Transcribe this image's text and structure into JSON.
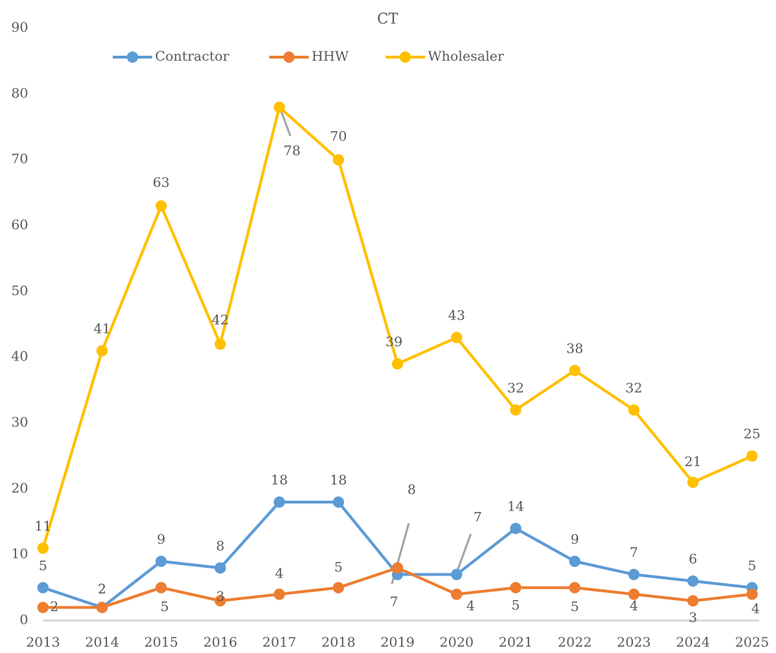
{
  "chart_data": {
    "type": "line",
    "title": "CT",
    "categories": [
      "2013",
      "2014",
      "2015",
      "2016",
      "2017",
      "2018",
      "2019",
      "2020",
      "2021",
      "2022",
      "2023",
      "2024",
      "2025"
    ],
    "series": [
      {
        "name": "Contractor",
        "color": "#5b9bd5",
        "values": [
          5,
          2,
          9,
          8,
          18,
          18,
          7,
          7,
          14,
          9,
          7,
          6,
          5
        ]
      },
      {
        "name": "HHW",
        "color": "#ed7d31",
        "values": [
          2,
          2,
          5,
          3,
          4,
          5,
          8,
          4,
          5,
          5,
          4,
          3,
          4
        ]
      },
      {
        "name": "Wholesaler",
        "color": "#ffc000",
        "values": [
          11,
          41,
          63,
          42,
          78,
          70,
          39,
          43,
          32,
          38,
          32,
          21,
          25
        ]
      }
    ],
    "ylim": [
      0,
      90
    ],
    "yticks": [
      0,
      10,
      20,
      30,
      40,
      50,
      60,
      70,
      80,
      90
    ],
    "grid": false,
    "legend": "top",
    "data_labels": true
  }
}
